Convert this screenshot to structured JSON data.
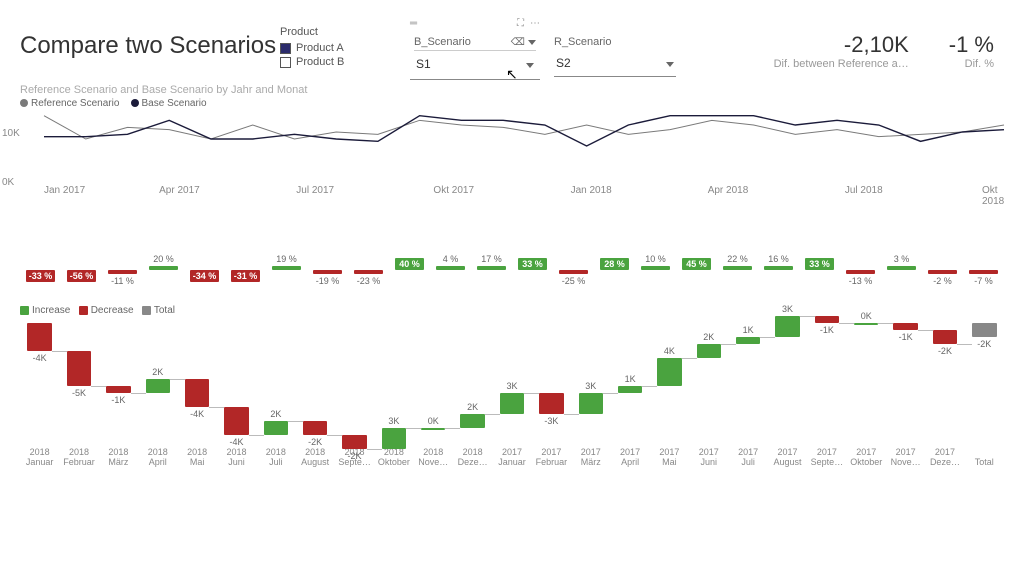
{
  "title": "Compare two Scenarios",
  "product": {
    "label": "Product",
    "a": "Product A",
    "b": "Product B"
  },
  "slicerB": {
    "label": "B_Scenario",
    "value": "S1"
  },
  "slicerR": {
    "label": "R_Scenario",
    "value": "S2"
  },
  "kpi1": {
    "value": "-2,10K",
    "label": "Dif. between Reference a…"
  },
  "kpi2": {
    "value": "-1 %",
    "label": "Dif. %"
  },
  "lineChart": {
    "title": "Reference Scenario and Base Scenario by Jahr and Monat",
    "legend": {
      "ref": "Reference Scenario",
      "base": "Base Scenario"
    },
    "refColor": "#7a7a7a",
    "baseColor": "#1b1b3a",
    "y_top_label": "10K",
    "y_bot_label": "0K",
    "x_labels": [
      "Jan 2017",
      "Apr 2017",
      "Jul 2017",
      "Okt 2017",
      "Jan 2018",
      "Apr 2018",
      "Jul 2018",
      "Okt 2018"
    ],
    "y_max": 15,
    "ref": [
      14,
      9,
      11.5,
      11,
      9,
      12,
      9,
      10.5,
      10,
      13,
      12,
      11.5,
      10,
      12,
      10,
      11,
      13,
      12,
      10,
      11,
      9.5,
      10,
      10.5,
      12
    ],
    "base": [
      9.5,
      9.5,
      10,
      13,
      9,
      9,
      10,
      9,
      8.5,
      14,
      13,
      13,
      12,
      7.5,
      12,
      14,
      14,
      14,
      12,
      13,
      12,
      8.5,
      10.5,
      11
    ]
  },
  "pctChart": {
    "green": "#4aa33f",
    "red": "#b22727",
    "gridBase": 35,
    "items": [
      {
        "v": -33,
        "big": true
      },
      {
        "v": -56,
        "big": true
      },
      {
        "v": -11,
        "big": false
      },
      {
        "v": 20,
        "big": false
      },
      {
        "v": -34,
        "big": true
      },
      {
        "v": -31,
        "big": true
      },
      {
        "v": 19,
        "big": false
      },
      {
        "v": -19,
        "big": false
      },
      {
        "v": -23,
        "big": false
      },
      {
        "v": 40,
        "big": true
      },
      {
        "v": 4,
        "big": false
      },
      {
        "v": 17,
        "big": false
      },
      {
        "v": 33,
        "big": true
      },
      {
        "v": -25,
        "big": false
      },
      {
        "v": 28,
        "big": true
      },
      {
        "v": 10,
        "big": false
      },
      {
        "v": 45,
        "big": true
      },
      {
        "v": 22,
        "big": false
      },
      {
        "v": 16,
        "big": false
      },
      {
        "v": 33,
        "big": true
      },
      {
        "v": -13,
        "big": false
      },
      {
        "v": 3,
        "big": false
      },
      {
        "v": -2,
        "big": false
      },
      {
        "v": -7,
        "big": false
      }
    ]
  },
  "wf": {
    "legend": {
      "inc": "Increase",
      "dec": "Decrease",
      "tot": "Total"
    },
    "green": "#4aa33f",
    "red": "#b22727",
    "grey": "#888",
    "baselineY": 90,
    "scale": 7,
    "items": [
      {
        "year": "2018",
        "month": "Januar",
        "v": -4
      },
      {
        "year": "2018",
        "month": "Februar",
        "v": -5
      },
      {
        "year": "2018",
        "month": "März",
        "v": -1
      },
      {
        "year": "2018",
        "month": "April",
        "v": 2
      },
      {
        "year": "2018",
        "month": "Mai",
        "v": -4
      },
      {
        "year": "2018",
        "month": "Juni",
        "v": -4
      },
      {
        "year": "2018",
        "month": "Juli",
        "v": 2
      },
      {
        "year": "2018",
        "month": "August",
        "v": -2
      },
      {
        "year": "2018",
        "month": "Septe…",
        "v": -2
      },
      {
        "year": "2018",
        "month": "Oktober",
        "v": 3
      },
      {
        "year": "2018",
        "month": "Nove…",
        "v": 0
      },
      {
        "year": "2018",
        "month": "Deze…",
        "v": 2
      },
      {
        "year": "2017",
        "month": "Januar",
        "v": 3
      },
      {
        "year": "2017",
        "month": "Februar",
        "v": -3
      },
      {
        "year": "2017",
        "month": "März",
        "v": 3
      },
      {
        "year": "2017",
        "month": "April",
        "v": 1
      },
      {
        "year": "2017",
        "month": "Mai",
        "v": 4
      },
      {
        "year": "2017",
        "month": "Juni",
        "v": 2
      },
      {
        "year": "2017",
        "month": "Juli",
        "v": 1
      },
      {
        "year": "2017",
        "month": "August",
        "v": 3
      },
      {
        "year": "2017",
        "month": "Septe…",
        "v": -1
      },
      {
        "year": "2017",
        "month": "Oktober",
        "v": 0
      },
      {
        "year": "2017",
        "month": "Nove…",
        "v": -1
      },
      {
        "year": "2017",
        "month": "Deze…",
        "v": -2
      }
    ],
    "total": {
      "label": "Total",
      "v": -2
    }
  }
}
